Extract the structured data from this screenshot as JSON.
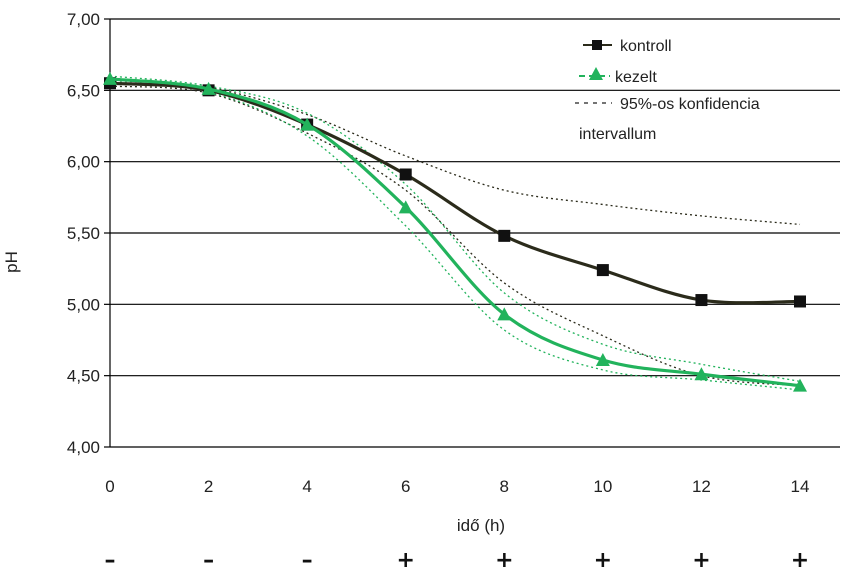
{
  "chart_data": {
    "type": "line",
    "title": "",
    "xlabel": "idő (h)",
    "ylabel": "pH",
    "xlim": [
      0,
      14
    ],
    "ylim": [
      4.0,
      7.0
    ],
    "x_ticks": [
      0,
      2,
      4,
      6,
      8,
      10,
      12,
      14
    ],
    "x_tick_labels": [
      "0",
      "2",
      "4",
      "6",
      "8",
      "10",
      "12",
      "14"
    ],
    "y_ticks": [
      4.0,
      4.5,
      5.0,
      5.5,
      6.0,
      6.5,
      7.0
    ],
    "y_tick_labels": [
      "4,00",
      "4,50",
      "5,00",
      "5,50",
      "6,00",
      "6,50",
      "7,00"
    ],
    "grid": "horizontal",
    "legend_position": "top-right",
    "legend": {
      "kontroll": "kontroll",
      "kezelt": "kezelt",
      "ci_line1": "95%-os konfidencia",
      "ci_line2": "intervallum"
    },
    "series": [
      {
        "name": "kontroll",
        "color": "#2b2b1b",
        "marker": "square",
        "x": [
          0,
          2,
          4,
          6,
          8,
          10,
          12,
          14
        ],
        "y": [
          6.55,
          6.5,
          6.26,
          5.91,
          5.48,
          5.24,
          5.03,
          5.02
        ]
      },
      {
        "name": "kezelt",
        "color": "#22b35c",
        "marker": "triangle",
        "x": [
          0,
          2,
          4,
          6,
          8,
          10,
          12,
          14
        ],
        "y": [
          6.58,
          6.51,
          6.26,
          5.68,
          4.93,
          4.61,
          4.51,
          4.43
        ]
      }
    ],
    "confidence_intervals": [
      {
        "series": "kontroll",
        "color": "#2b2b1b",
        "x": [
          0,
          2,
          4,
          6,
          8,
          10,
          12,
          14
        ],
        "upper": [
          6.57,
          6.52,
          6.33,
          6.04,
          5.8,
          5.7,
          5.62,
          5.56
        ],
        "lower": [
          6.53,
          6.48,
          6.2,
          5.8,
          5.15,
          4.78,
          4.5,
          4.43
        ]
      },
      {
        "series": "kezelt",
        "color": "#22b35c",
        "x": [
          0,
          2,
          4,
          6,
          8,
          10,
          12,
          14
        ],
        "upper": [
          6.6,
          6.53,
          6.34,
          5.84,
          5.08,
          4.72,
          4.58,
          4.46
        ],
        "lower": [
          6.56,
          6.49,
          6.18,
          5.55,
          4.82,
          4.54,
          4.47,
          4.4
        ]
      }
    ],
    "bottom_signs": [
      "–",
      "–",
      "–",
      "+",
      "+",
      "+",
      "+",
      "+"
    ]
  }
}
